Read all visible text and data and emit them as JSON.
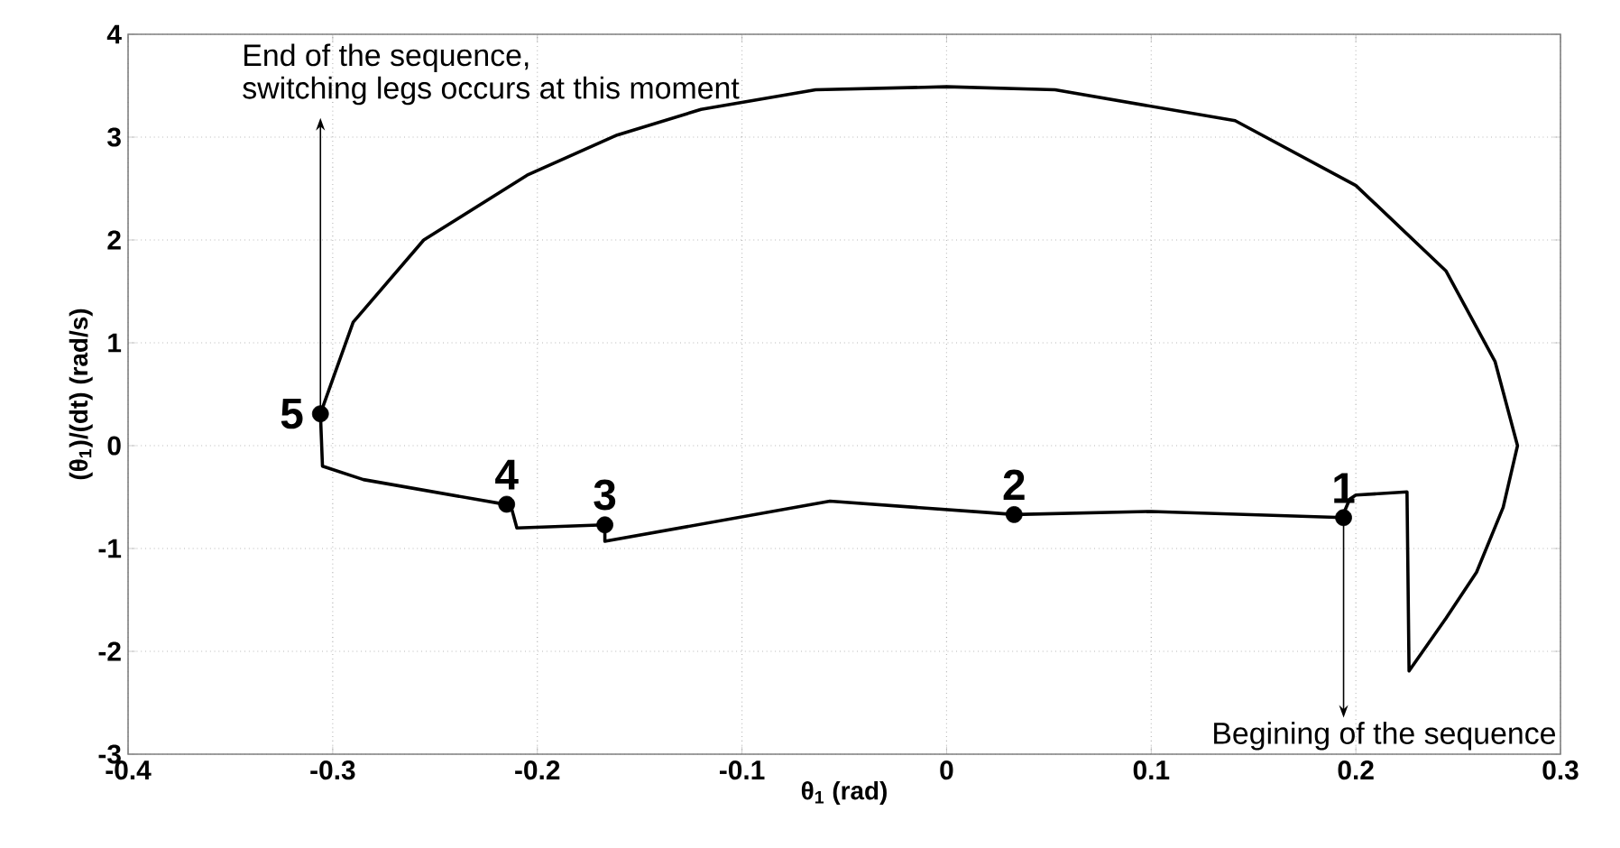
{
  "chart_data": {
    "type": "line",
    "xlabel": "θ$_{1}$ (rad)",
    "ylabel": "(θ$_{1}$)/(dt) (rad/s)",
    "xlim": [
      -0.4,
      0.3
    ],
    "ylim": [
      -3,
      4
    ],
    "xticks": [
      -0.4,
      -0.3,
      -0.2,
      -0.1,
      0,
      0.1,
      0.2,
      0.3
    ],
    "yticks": [
      -3,
      -2,
      -1,
      0,
      1,
      2,
      3,
      4
    ],
    "grid": true,
    "series": [
      {
        "color": "#000000",
        "marker": "none",
        "x": [
          0.194,
          0.1,
          0.033,
          0.02,
          -0.057,
          -0.167,
          -0.167,
          -0.21,
          -0.213,
          -0.285,
          -0.305,
          -0.306,
          -0.299,
          -0.29,
          -0.2555,
          -0.205,
          -0.161,
          -0.12,
          -0.064,
          0,
          0.053,
          0.141,
          0.2,
          0.244,
          0.268,
          0.279,
          0.272,
          0.259,
          0.244,
          0.226,
          0.225,
          0.2,
          0.197,
          0.194
        ],
        "values": [
          -0.7,
          -0.64,
          -0.67,
          -0.65,
          -0.54,
          -0.93,
          -0.77,
          -0.8,
          -0.58,
          -0.33,
          -0.2,
          0.31,
          0.7,
          1.2,
          2.0,
          2.63,
          3.02,
          3.27,
          3.46,
          3.49,
          3.46,
          3.16,
          2.53,
          1.7,
          0.82,
          0,
          -0.6,
          -1.23,
          -1.68,
          -2.19,
          -0.45,
          -0.48,
          -0.52,
          -0.66
        ]
      },
      {
        "type": "scatter",
        "color": "#000000",
        "marker": "circle",
        "x": [
          0.194,
          0.033,
          -0.167,
          -0.215,
          -0.306
        ],
        "values": [
          -0.7,
          -0.67,
          -0.77,
          -0.57,
          0.31
        ]
      }
    ],
    "annotations": [
      "End of the sequence,",
      {
        "text": "switching legs occurs at this moment",
        "x": -0.306,
        "y": 0.31
      },
      {
        "text": "Begining of the sequence",
        "x": 0.194,
        "y": -0.7
      },
      {
        "text": "1",
        "x": 0.194,
        "y": -0.7
      },
      {
        "text": "2",
        "x": 0.033,
        "y": -0.67
      },
      {
        "text": "3",
        "x": -0.167,
        "y": -0.77
      },
      {
        "text": "4",
        "x": -0.215,
        "y": -0.57
      },
      {
        "text": "5",
        "x": -0.306,
        "y": 0.31
      }
    ]
  }
}
